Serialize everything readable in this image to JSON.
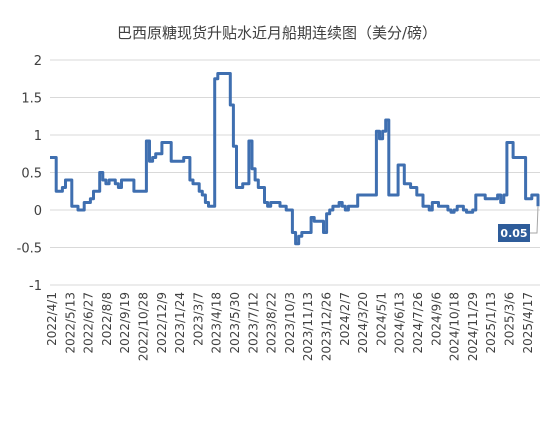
{
  "chart_data": {
    "type": "line",
    "title": "巴西原糖现货升贴水近月船期连续图（美分/磅）",
    "xlabel": "",
    "ylabel": "",
    "ylim": [
      -1,
      2
    ],
    "yticks": [
      2,
      1.5,
      1,
      0.5,
      0,
      -0.5,
      -1
    ],
    "ytick_labels": [
      "2",
      "1.5",
      "1",
      "0.5",
      "0",
      "-0.5",
      "-1"
    ],
    "x_tick_labels": [
      "2022/4/1",
      "2022/5/13",
      "2022/6/27",
      "2022/8/8",
      "2022/9/19",
      "2022/10/28",
      "2022/12/9",
      "2023/1/24",
      "2023/3/7",
      "2023/4/18",
      "2023/5/30",
      "2023/7/12",
      "2023/8/22",
      "2023/10/3",
      "2023/11/13",
      "2023/12/26",
      "2024/2/7",
      "2024/3/20",
      "2024/5/1",
      "2024/6/13",
      "2024/7/26",
      "2024/9/6",
      "2024/10/18",
      "2024/11/29",
      "2025/1/13",
      "2025/3/6",
      "2025/4/17"
    ],
    "grid": true,
    "legend": "none",
    "colors": {
      "series": "#3f6fb0",
      "label_bg": "#2e5c9a"
    },
    "series": [
      {
        "values": [
          0.7,
          0.7,
          0.25,
          0.25,
          0.3,
          0.4,
          0.4,
          0.05,
          0.05,
          0.0,
          0.0,
          0.1,
          0.1,
          0.15,
          0.25,
          0.25,
          0.5,
          0.4,
          0.35,
          0.4,
          0.4,
          0.35,
          0.3,
          0.4,
          0.4,
          0.4,
          0.4,
          0.25,
          0.25,
          0.25,
          0.25,
          0.92,
          0.65,
          0.7,
          0.75,
          0.75,
          0.9,
          0.9,
          0.9,
          0.65,
          0.65,
          0.65,
          0.65,
          0.7,
          0.7,
          0.4,
          0.35,
          0.35,
          0.25,
          0.2,
          0.1,
          0.05,
          0.05,
          1.75,
          1.82,
          1.82,
          1.82,
          1.82,
          1.4,
          0.85,
          0.3,
          0.3,
          0.35,
          0.35,
          0.92,
          0.55,
          0.4,
          0.3,
          0.3,
          0.1,
          0.05,
          0.1,
          0.1,
          0.1,
          0.05,
          0.05,
          0.0,
          0.0,
          -0.3,
          -0.45,
          -0.35,
          -0.3,
          -0.3,
          -0.3,
          -0.1,
          -0.15,
          -0.15,
          -0.15,
          -0.3,
          -0.05,
          0.0,
          0.05,
          0.05,
          0.1,
          0.05,
          0.0,
          0.05,
          0.05,
          0.05,
          0.2,
          0.2,
          0.2,
          0.2,
          0.2,
          0.2,
          1.05,
          0.95,
          1.05,
          1.2,
          0.2,
          0.2,
          0.2,
          0.6,
          0.6,
          0.35,
          0.35,
          0.3,
          0.3,
          0.2,
          0.2,
          0.05,
          0.05,
          0.0,
          0.1,
          0.1,
          0.05,
          0.05,
          0.05,
          0.0,
          -0.03,
          0.0,
          0.05,
          0.05,
          0.0,
          -0.03,
          -0.03,
          0.0,
          0.2,
          0.2,
          0.2,
          0.15,
          0.15,
          0.15,
          0.15,
          0.2,
          0.1,
          0.2,
          0.9,
          0.9,
          0.7,
          0.7,
          0.7,
          0.7,
          0.15,
          0.15,
          0.2,
          0.2,
          0.05
        ]
      }
    ],
    "last_value_label": "0.05"
  }
}
